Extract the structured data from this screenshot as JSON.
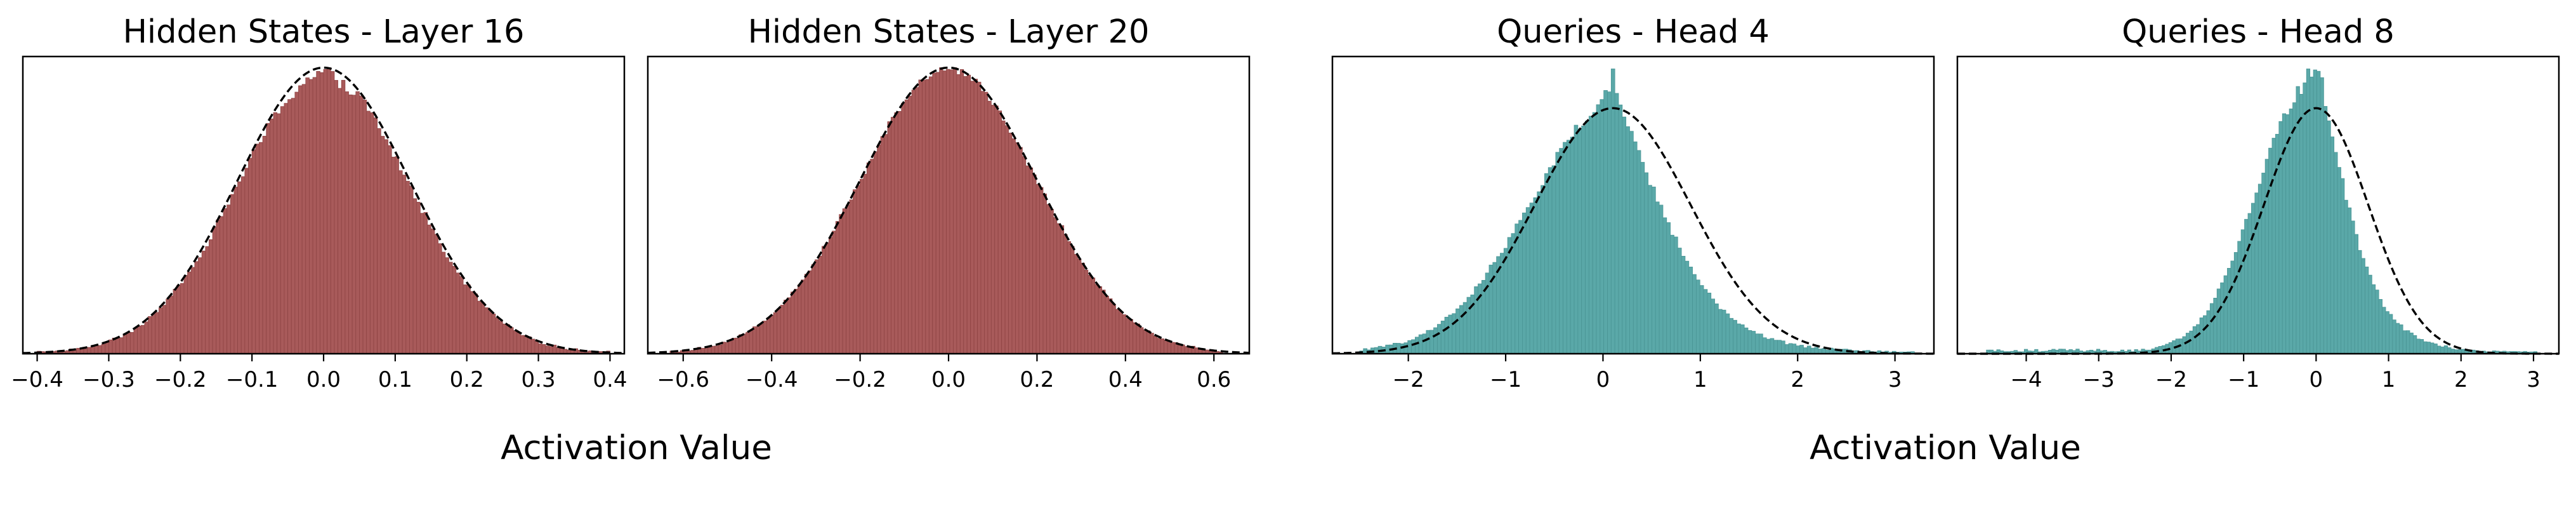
{
  "figure": {
    "xlabels": [
      "Activation Value",
      "Activation Value"
    ]
  },
  "chart_data": [
    {
      "type": "bar",
      "title": "Hidden States - Layer 16",
      "xlabel": "",
      "ylabel": "",
      "xlim": [
        -0.42,
        0.42
      ],
      "xticks": [
        -0.4,
        -0.3,
        -0.2,
        -0.1,
        0.0,
        0.1,
        0.2,
        0.3,
        0.4
      ],
      "xtick_labels": [
        "−0.4",
        "−0.3",
        "−0.2",
        "−0.1",
        "0.0",
        "0.1",
        "0.2",
        "0.3",
        "0.4"
      ],
      "bar_color": "#a85a5a",
      "bar_edge_color": "#8f4444",
      "fit_curve": "normal",
      "fit_mean": 0.0,
      "fit_std": 0.12,
      "bins": 160,
      "data_range": [
        -0.4,
        0.4
      ],
      "skew": 0,
      "tail_left": 0,
      "noise": 0.03,
      "peak_rel": 1.0,
      "y_top_rel": 1.03
    },
    {
      "type": "bar",
      "title": "Hidden States - Layer 20",
      "xlabel": "",
      "ylabel": "",
      "xlim": [
        -0.68,
        0.68
      ],
      "xticks": [
        -0.6,
        -0.4,
        -0.2,
        0.0,
        0.2,
        0.4,
        0.6
      ],
      "xtick_labels": [
        "−0.6",
        "−0.4",
        "−0.2",
        "0.0",
        "0.2",
        "0.4",
        "0.6"
      ],
      "bar_color": "#a85a5a",
      "bar_edge_color": "#8f4444",
      "fit_curve": "normal",
      "fit_mean": 0.0,
      "fit_std": 0.2,
      "bins": 160,
      "data_range": [
        -0.63,
        0.62
      ],
      "skew": 0,
      "tail_left": 0,
      "noise": 0.015,
      "peak_rel": 1.0,
      "y_top_rel": 1.03
    },
    {
      "type": "bar",
      "title": "Queries - Head 4",
      "xlabel": "",
      "ylabel": "",
      "xlim": [
        -2.78,
        3.4
      ],
      "xticks": [
        -2,
        -1,
        0,
        1,
        2,
        3
      ],
      "xtick_labels": [
        "−2",
        "−1",
        "0",
        "1",
        "2",
        "3"
      ],
      "bar_color": "#5aa8a8",
      "bar_edge_color": "#4a9595",
      "fit_curve": "normal",
      "fit_mean": 0.1,
      "fit_std": 0.8,
      "bins": 150,
      "data_range": [
        -2.5,
        3.2
      ],
      "skew": -0.6,
      "tail_left": 0,
      "noise": 0.03,
      "peak_rel": 1.16,
      "y_top_rel": 1.2
    },
    {
      "type": "bar",
      "title": "Queries - Head 8",
      "xlabel": "",
      "ylabel": "",
      "xlim": [
        -4.95,
        3.35
      ],
      "xticks": [
        -4,
        -3,
        -2,
        -1,
        0,
        1,
        2,
        3
      ],
      "xtick_labels": [
        "−4",
        "−3",
        "−2",
        "−1",
        "0",
        "1",
        "2",
        "3"
      ],
      "bar_color": "#5aa8a8",
      "bar_edge_color": "#4a9595",
      "fit_curve": "normal",
      "fit_mean": 0.0,
      "fit_std": 0.72,
      "bins": 160,
      "data_range": [
        -4.55,
        3.05
      ],
      "skew": -0.8,
      "tail_left": 0.012,
      "noise": 0.03,
      "peak_rel": 1.16,
      "y_top_rel": 1.2
    }
  ]
}
